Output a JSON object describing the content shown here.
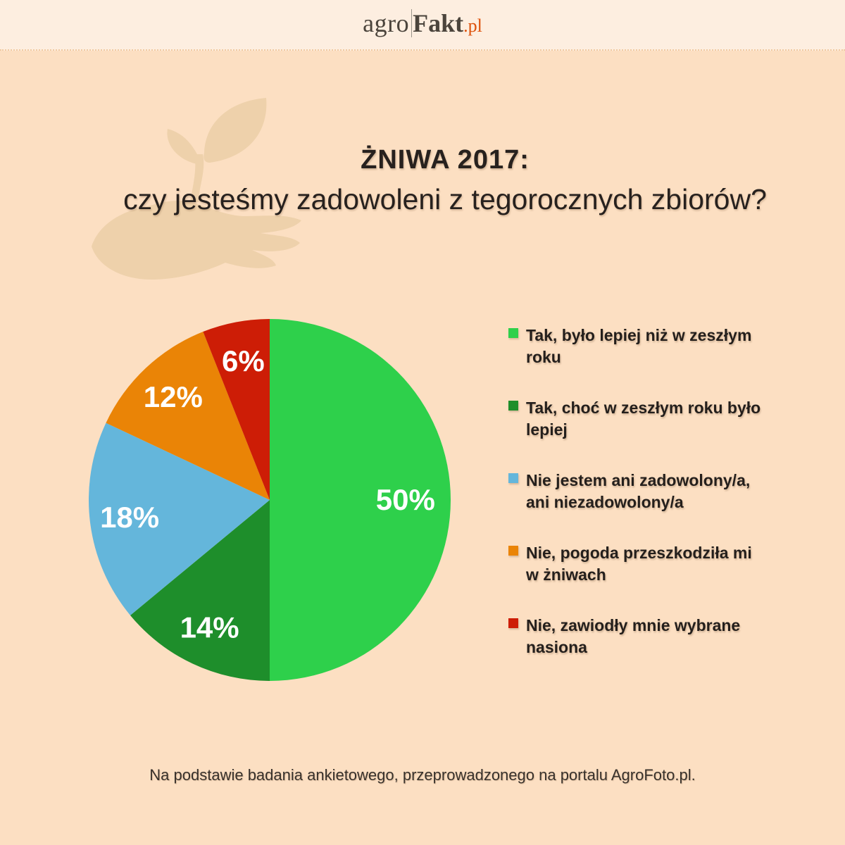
{
  "header": {
    "logo": {
      "agro": "agro",
      "fakt": "Fakt",
      "tld": ".pl"
    }
  },
  "title": {
    "line1": "ŻNIWA 2017:",
    "line2": "czy jesteśmy zadowoleni z tegorocznych zbiorów?"
  },
  "footer": {
    "text": "Na podstawie badania ankietowego, przeprowadzonego na portalu AgroFoto.pl."
  },
  "colors": {
    "page_background": "#fcdfc2",
    "header_background": "#fdeee0",
    "watermark": "#eed1ab",
    "text_dark": "#27211e",
    "logo_accent": "#de520c",
    "pie_label": "#ffffff"
  },
  "chart_data": {
    "type": "pie",
    "title": "ŻNIWA 2017: czy jesteśmy zadowoleni z tegorocznych zbiorów?",
    "start_angle_deg": 0,
    "direction": "clockwise",
    "legend_position": "right",
    "slices": [
      {
        "label": "Tak, było lepiej niż w zeszłym roku",
        "label_lines": [
          "Tak, było lepiej niż w zeszłym",
          "roku"
        ],
        "value": 50,
        "pct_label": "50%",
        "color": "#2ed04b"
      },
      {
        "label": "Tak, choć w zeszłym roku było lepiej",
        "label_lines": [
          "Tak, choć w zeszłym roku było",
          "lepiej"
        ],
        "value": 14,
        "pct_label": "14%",
        "color": "#1e8e2b"
      },
      {
        "label": "Nie jestem ani zadowolony/a, ani niezadowolony/a",
        "label_lines": [
          "Nie jestem ani zadowolony/a,",
          "ani niezadowolony/a"
        ],
        "value": 18,
        "pct_label": "18%",
        "color": "#64b6db"
      },
      {
        "label": "Nie, pogoda przeszkodziła mi w żniwach",
        "label_lines": [
          "Nie, pogoda przeszkodziła mi",
          "w żniwach"
        ],
        "value": 12,
        "pct_label": "12%",
        "color": "#ea8406"
      },
      {
        "label": "Nie, zawiodły mnie wybrane nasiona",
        "label_lines": [
          "Nie, zawiodły mnie wybrane",
          "nasiona"
        ],
        "value": 6,
        "pct_label": "6%",
        "color": "#cd1d06"
      }
    ]
  }
}
